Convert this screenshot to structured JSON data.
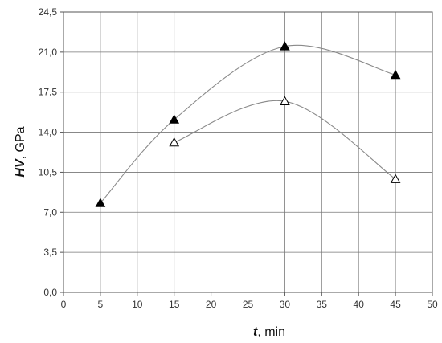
{
  "chart_data": {
    "type": "scatter",
    "xlabel_var": "t",
    "xlabel_unit": ", min",
    "ylabel_var": "HV",
    "ylabel_unit": ", GPa",
    "xlim": [
      0,
      50
    ],
    "ylim": [
      0,
      24.5
    ],
    "x_ticks": [
      "0",
      "5",
      "10",
      "15",
      "20",
      "25",
      "30",
      "35",
      "40",
      "45",
      "50"
    ],
    "y_ticks": [
      "0,0",
      "3,5",
      "7,0",
      "10,5",
      "14,0",
      "17,5",
      "21,0",
      "24,5"
    ],
    "grid": true,
    "series": [
      {
        "marker": "filled-triangle",
        "color": "#000000",
        "x": [
          5,
          15,
          30,
          45
        ],
        "y": [
          7.8,
          15.1,
          21.5,
          19.0
        ]
      },
      {
        "marker": "open-triangle",
        "color": "#000000",
        "x": [
          15,
          30,
          45
        ],
        "y": [
          13.1,
          16.7,
          9.9
        ]
      }
    ]
  }
}
